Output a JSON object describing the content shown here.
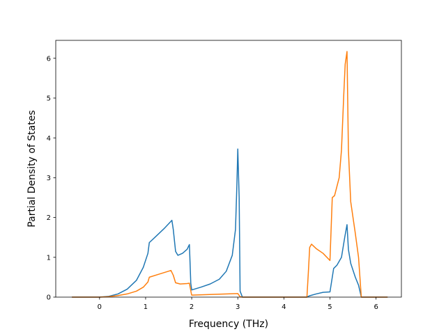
{
  "chart_data": {
    "type": "line",
    "title": "",
    "xlabel": "Frequency (THz)",
    "ylabel": "Partial Density of States",
    "xlim": [
      -0.95,
      6.55
    ],
    "ylim": [
      0,
      6.45
    ],
    "x_ticks": [
      0,
      1,
      2,
      3,
      4,
      5,
      6
    ],
    "y_ticks": [
      0,
      1,
      2,
      3,
      4,
      5,
      6
    ],
    "grid": false,
    "legend": "none",
    "series": [
      {
        "color": "#1f77b4",
        "points": [
          [
            -0.6,
            0.0
          ],
          [
            0.0,
            0.0
          ],
          [
            0.2,
            0.02
          ],
          [
            0.4,
            0.08
          ],
          [
            0.6,
            0.2
          ],
          [
            0.8,
            0.42
          ],
          [
            0.95,
            0.75
          ],
          [
            1.05,
            1.1
          ],
          [
            1.08,
            1.37
          ],
          [
            1.2,
            1.5
          ],
          [
            1.4,
            1.72
          ],
          [
            1.57,
            1.93
          ],
          [
            1.6,
            1.7
          ],
          [
            1.65,
            1.15
          ],
          [
            1.7,
            1.05
          ],
          [
            1.8,
            1.1
          ],
          [
            1.9,
            1.2
          ],
          [
            1.95,
            1.32
          ],
          [
            1.98,
            0.35
          ],
          [
            2.0,
            0.18
          ],
          [
            2.2,
            0.25
          ],
          [
            2.4,
            0.33
          ],
          [
            2.6,
            0.45
          ],
          [
            2.75,
            0.65
          ],
          [
            2.88,
            1.05
          ],
          [
            2.95,
            1.7
          ],
          [
            2.98,
            2.8
          ],
          [
            3.0,
            3.72
          ],
          [
            3.03,
            2.5
          ],
          [
            3.05,
            0.15
          ],
          [
            3.1,
            0.0
          ],
          [
            4.5,
            0.0
          ],
          [
            4.55,
            0.03
          ],
          [
            4.7,
            0.08
          ],
          [
            4.85,
            0.12
          ],
          [
            5.0,
            0.13
          ],
          [
            5.08,
            0.72
          ],
          [
            5.15,
            0.8
          ],
          [
            5.25,
            1.0
          ],
          [
            5.32,
            1.5
          ],
          [
            5.37,
            1.82
          ],
          [
            5.4,
            1.2
          ],
          [
            5.45,
            0.85
          ],
          [
            5.55,
            0.5
          ],
          [
            5.62,
            0.3
          ],
          [
            5.68,
            0.0
          ],
          [
            6.25,
            0.0
          ]
        ]
      },
      {
        "color": "#ff7f0e",
        "points": [
          [
            -0.6,
            0.0
          ],
          [
            0.0,
            0.0
          ],
          [
            0.2,
            0.01
          ],
          [
            0.4,
            0.04
          ],
          [
            0.6,
            0.08
          ],
          [
            0.8,
            0.15
          ],
          [
            0.95,
            0.25
          ],
          [
            1.05,
            0.38
          ],
          [
            1.08,
            0.5
          ],
          [
            1.3,
            0.58
          ],
          [
            1.55,
            0.67
          ],
          [
            1.6,
            0.55
          ],
          [
            1.65,
            0.36
          ],
          [
            1.75,
            0.33
          ],
          [
            1.9,
            0.34
          ],
          [
            1.95,
            0.35
          ],
          [
            1.99,
            0.1
          ],
          [
            2.0,
            0.05
          ],
          [
            2.5,
            0.07
          ],
          [
            3.0,
            0.09
          ],
          [
            3.05,
            0.01
          ],
          [
            3.1,
            0.0
          ],
          [
            4.5,
            0.0
          ],
          [
            4.53,
            0.6
          ],
          [
            4.56,
            1.25
          ],
          [
            4.6,
            1.33
          ],
          [
            4.7,
            1.22
          ],
          [
            4.85,
            1.1
          ],
          [
            5.0,
            0.92
          ],
          [
            5.05,
            2.5
          ],
          [
            5.1,
            2.55
          ],
          [
            5.2,
            3.0
          ],
          [
            5.25,
            3.7
          ],
          [
            5.3,
            5.1
          ],
          [
            5.33,
            5.85
          ],
          [
            5.37,
            6.17
          ],
          [
            5.4,
            3.7
          ],
          [
            5.45,
            2.4
          ],
          [
            5.55,
            1.6
          ],
          [
            5.62,
            1.0
          ],
          [
            5.68,
            0.0
          ],
          [
            6.25,
            0.0
          ]
        ]
      }
    ]
  }
}
